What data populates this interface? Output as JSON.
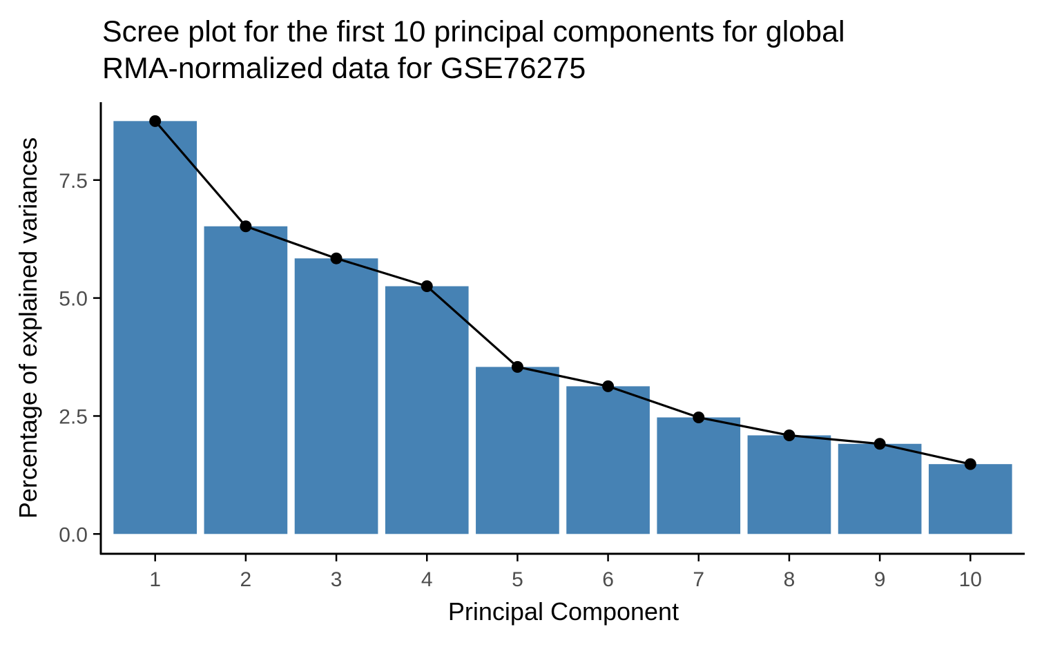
{
  "chart_data": {
    "type": "bar",
    "title": "Scree plot for the first 10 principal components for global RMA-normalized data for GSE76275",
    "title_lines": [
      "Scree plot for the first 10 principal components for global",
      "RMA-normalized data for GSE76275"
    ],
    "xlabel": "Principal Component",
    "ylabel": "Percentage of explained variances",
    "categories": [
      "1",
      "2",
      "3",
      "4",
      "5",
      "6",
      "7",
      "8",
      "9",
      "10"
    ],
    "values": [
      8.75,
      6.52,
      5.84,
      5.25,
      3.54,
      3.13,
      2.47,
      2.09,
      1.91,
      1.48
    ],
    "line_overlay": true,
    "ylim": [
      -0.42,
      9.15
    ],
    "yticks": [
      0.0,
      2.5,
      5.0,
      7.5
    ],
    "ytick_labels": [
      "0.0",
      "2.5",
      "5.0",
      "7.5"
    ],
    "grid": false,
    "legend": "none",
    "colors": {
      "bar": "#4682b4",
      "line": "#000000",
      "point": "#000000",
      "axis": "#000000",
      "tick_label": "#4d4d4d"
    }
  }
}
